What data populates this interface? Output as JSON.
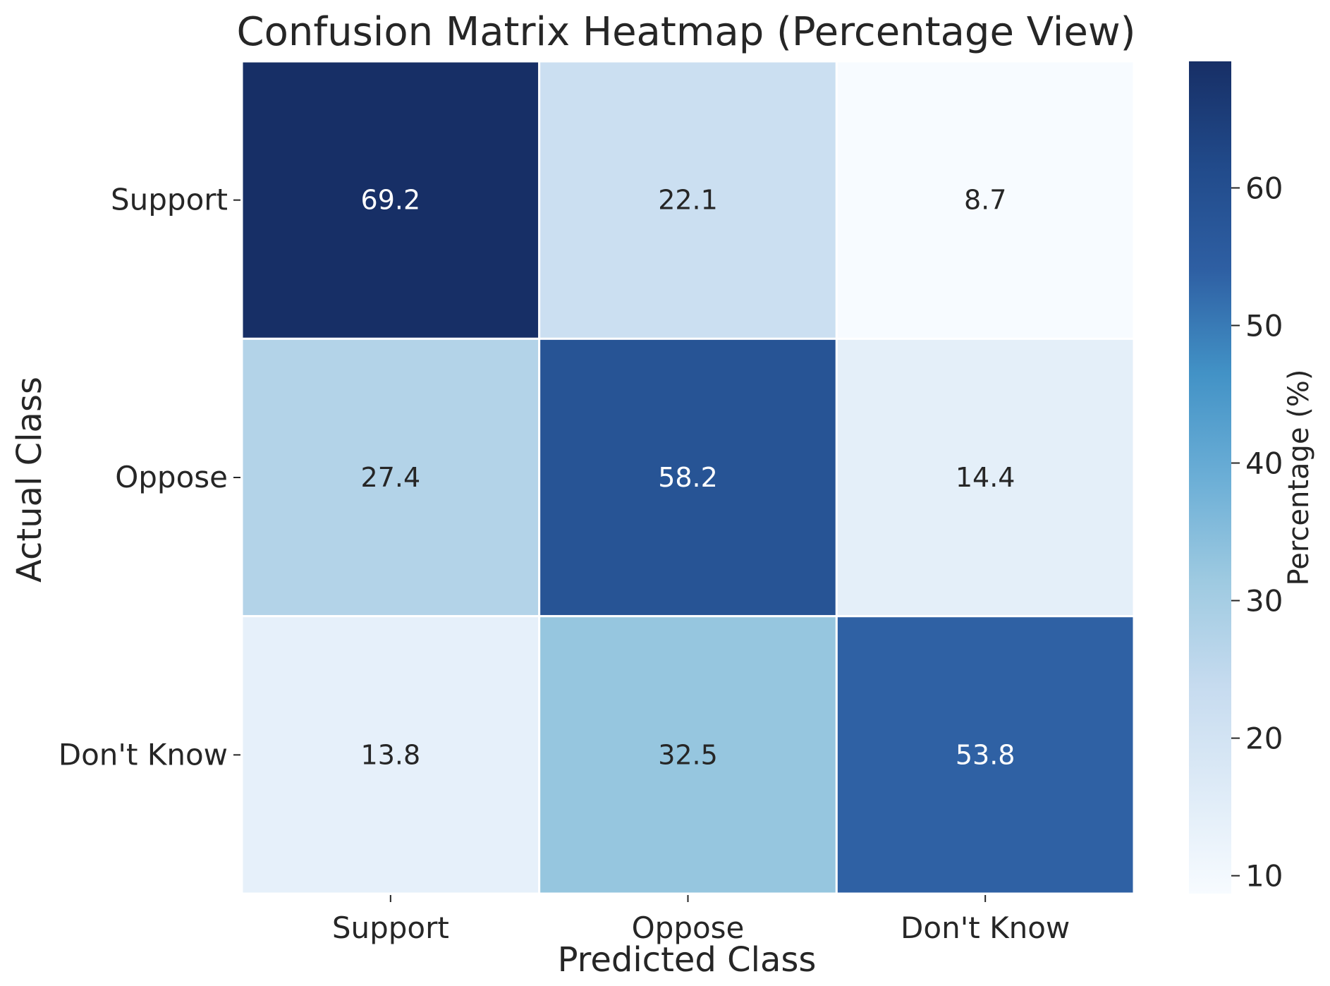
{
  "chart_data": {
    "type": "heatmap",
    "title": "Confusion Matrix Heatmap (Percentage View)",
    "xlabel": "Predicted Class",
    "ylabel": "Actual Class",
    "x_categories": [
      "Support",
      "Oppose",
      "Don't Know"
    ],
    "y_categories": [
      "Support",
      "Oppose",
      "Don't Know"
    ],
    "values": [
      [
        69.2,
        22.1,
        8.7
      ],
      [
        27.4,
        58.2,
        14.4
      ],
      [
        13.8,
        32.5,
        53.8
      ]
    ],
    "value_labels": [
      [
        "69.2",
        "22.1",
        "8.7"
      ],
      [
        "27.4",
        "58.2",
        "14.4"
      ],
      [
        "13.8",
        "32.5",
        "53.8"
      ]
    ],
    "colormap": "Blues",
    "colorbar": {
      "label": "Percentage (%)",
      "min": 8.7,
      "max": 69.2,
      "ticks": [
        10,
        20,
        30,
        40,
        50,
        60
      ],
      "tick_labels": [
        "10",
        "20",
        "30",
        "40",
        "50",
        "60"
      ]
    },
    "grid": false
  }
}
